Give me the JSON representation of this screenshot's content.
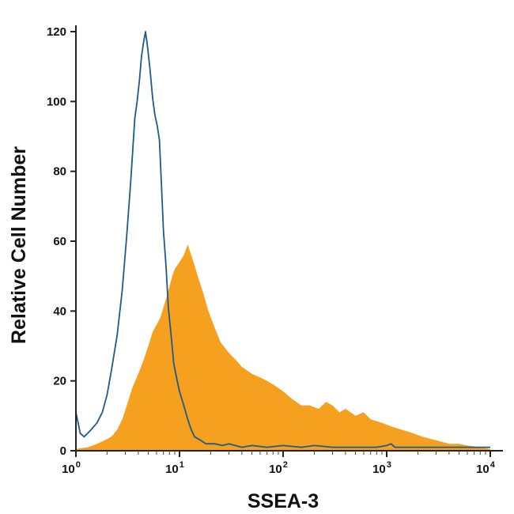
{
  "chart_data": {
    "type": "area",
    "title": "",
    "xlabel": "SSEA-3",
    "ylabel": "Relative Cell Number",
    "xscale": "log",
    "xlim": [
      1,
      10000
    ],
    "ylim": [
      0,
      120
    ],
    "grid": false,
    "legend": "none",
    "x_ticks": [
      {
        "value": 1,
        "base": "10",
        "exp": "0"
      },
      {
        "value": 10,
        "base": "10",
        "exp": "1"
      },
      {
        "value": 100,
        "base": "10",
        "exp": "2"
      },
      {
        "value": 1000,
        "base": "10",
        "exp": "3"
      },
      {
        "value": 10000,
        "base": "10",
        "exp": "4"
      }
    ],
    "y_ticks": [
      {
        "value": 0,
        "label": "0"
      },
      {
        "value": 20,
        "label": "20"
      },
      {
        "value": 40,
        "label": "40"
      },
      {
        "value": 60,
        "label": "60"
      },
      {
        "value": 80,
        "label": "80"
      },
      {
        "value": 100,
        "label": "100"
      },
      {
        "value": 120,
        "label": "120"
      }
    ],
    "series": [
      {
        "style": "filled",
        "color": "#f5a01e",
        "points": [
          [
            1.0,
            0.5
          ],
          [
            1.3,
            1
          ],
          [
            1.6,
            2
          ],
          [
            1.9,
            3
          ],
          [
            2.2,
            4
          ],
          [
            2.5,
            6
          ],
          [
            2.8,
            9
          ],
          [
            3.1,
            13
          ],
          [
            3.5,
            18
          ],
          [
            4.0,
            22
          ],
          [
            4.5,
            26
          ],
          [
            5.0,
            30
          ],
          [
            5.5,
            34
          ],
          [
            6.0,
            36
          ],
          [
            6.5,
            38
          ],
          [
            7.0,
            41
          ],
          [
            7.5,
            44
          ],
          [
            8.0,
            47
          ],
          [
            8.5,
            50
          ],
          [
            9.0,
            52
          ],
          [
            10.0,
            54
          ],
          [
            11.0,
            56
          ],
          [
            12.0,
            59
          ],
          [
            13.0,
            56
          ],
          [
            14.0,
            53
          ],
          [
            15.0,
            50
          ],
          [
            17.0,
            45
          ],
          [
            19.0,
            40
          ],
          [
            22.0,
            35
          ],
          [
            25.0,
            31
          ],
          [
            30.0,
            28
          ],
          [
            35.0,
            26
          ],
          [
            40.0,
            24
          ],
          [
            50.0,
            22
          ],
          [
            60.0,
            21
          ],
          [
            70.0,
            20
          ],
          [
            80.0,
            19
          ],
          [
            100.0,
            17
          ],
          [
            120.0,
            15
          ],
          [
            150.0,
            13
          ],
          [
            180.0,
            13
          ],
          [
            220.0,
            12
          ],
          [
            260.0,
            14
          ],
          [
            300.0,
            13
          ],
          [
            350.0,
            11
          ],
          [
            400.0,
            12
          ],
          [
            500.0,
            10
          ],
          [
            600.0,
            11
          ],
          [
            700.0,
            9
          ],
          [
            900.0,
            8
          ],
          [
            1100.0,
            7
          ],
          [
            1400.0,
            6
          ],
          [
            1800.0,
            5
          ],
          [
            2200.0,
            4
          ],
          [
            3000.0,
            3
          ],
          [
            4000.0,
            2
          ],
          [
            5000.0,
            2
          ],
          [
            6000.0,
            1.5
          ],
          [
            8000.0,
            1
          ],
          [
            10000.0,
            0.5
          ]
        ]
      },
      {
        "style": "outline",
        "color": "#1f5a8a",
        "points": [
          [
            1.0,
            11
          ],
          [
            1.05,
            8
          ],
          [
            1.1,
            5
          ],
          [
            1.2,
            4
          ],
          [
            1.3,
            5
          ],
          [
            1.4,
            6
          ],
          [
            1.6,
            8
          ],
          [
            1.8,
            11
          ],
          [
            2.0,
            16
          ],
          [
            2.2,
            23
          ],
          [
            2.5,
            33
          ],
          [
            2.8,
            46
          ],
          [
            3.1,
            62
          ],
          [
            3.4,
            78
          ],
          [
            3.7,
            95
          ],
          [
            3.9,
            100
          ],
          [
            4.1,
            106
          ],
          [
            4.3,
            113
          ],
          [
            4.5,
            117
          ],
          [
            4.7,
            120
          ],
          [
            4.9,
            116
          ],
          [
            5.2,
            109
          ],
          [
            5.5,
            101
          ],
          [
            5.8,
            96
          ],
          [
            6.1,
            93
          ],
          [
            6.4,
            89
          ],
          [
            6.7,
            76
          ],
          [
            7.0,
            63
          ],
          [
            7.4,
            53
          ],
          [
            7.8,
            41
          ],
          [
            8.3,
            33
          ],
          [
            8.8,
            25
          ],
          [
            9.5,
            20
          ],
          [
            10.0,
            17
          ],
          [
            11.0,
            13
          ],
          [
            12.0,
            9
          ],
          [
            13.0,
            6
          ],
          [
            14.0,
            4
          ],
          [
            16.0,
            3
          ],
          [
            18.0,
            2
          ],
          [
            22.0,
            2
          ],
          [
            26.0,
            1.5
          ],
          [
            30.0,
            2
          ],
          [
            40.0,
            1
          ],
          [
            50.0,
            1.5
          ],
          [
            70.0,
            1
          ],
          [
            100.0,
            1.5
          ],
          [
            150.0,
            1
          ],
          [
            200.0,
            1.5
          ],
          [
            300.0,
            1
          ],
          [
            500.0,
            1
          ],
          [
            800.0,
            1
          ],
          [
            1000.0,
            1.5
          ],
          [
            1100.0,
            2
          ],
          [
            1200.0,
            1
          ],
          [
            2000.0,
            1
          ],
          [
            5000.0,
            1
          ],
          [
            10000.0,
            1
          ]
        ]
      }
    ]
  }
}
